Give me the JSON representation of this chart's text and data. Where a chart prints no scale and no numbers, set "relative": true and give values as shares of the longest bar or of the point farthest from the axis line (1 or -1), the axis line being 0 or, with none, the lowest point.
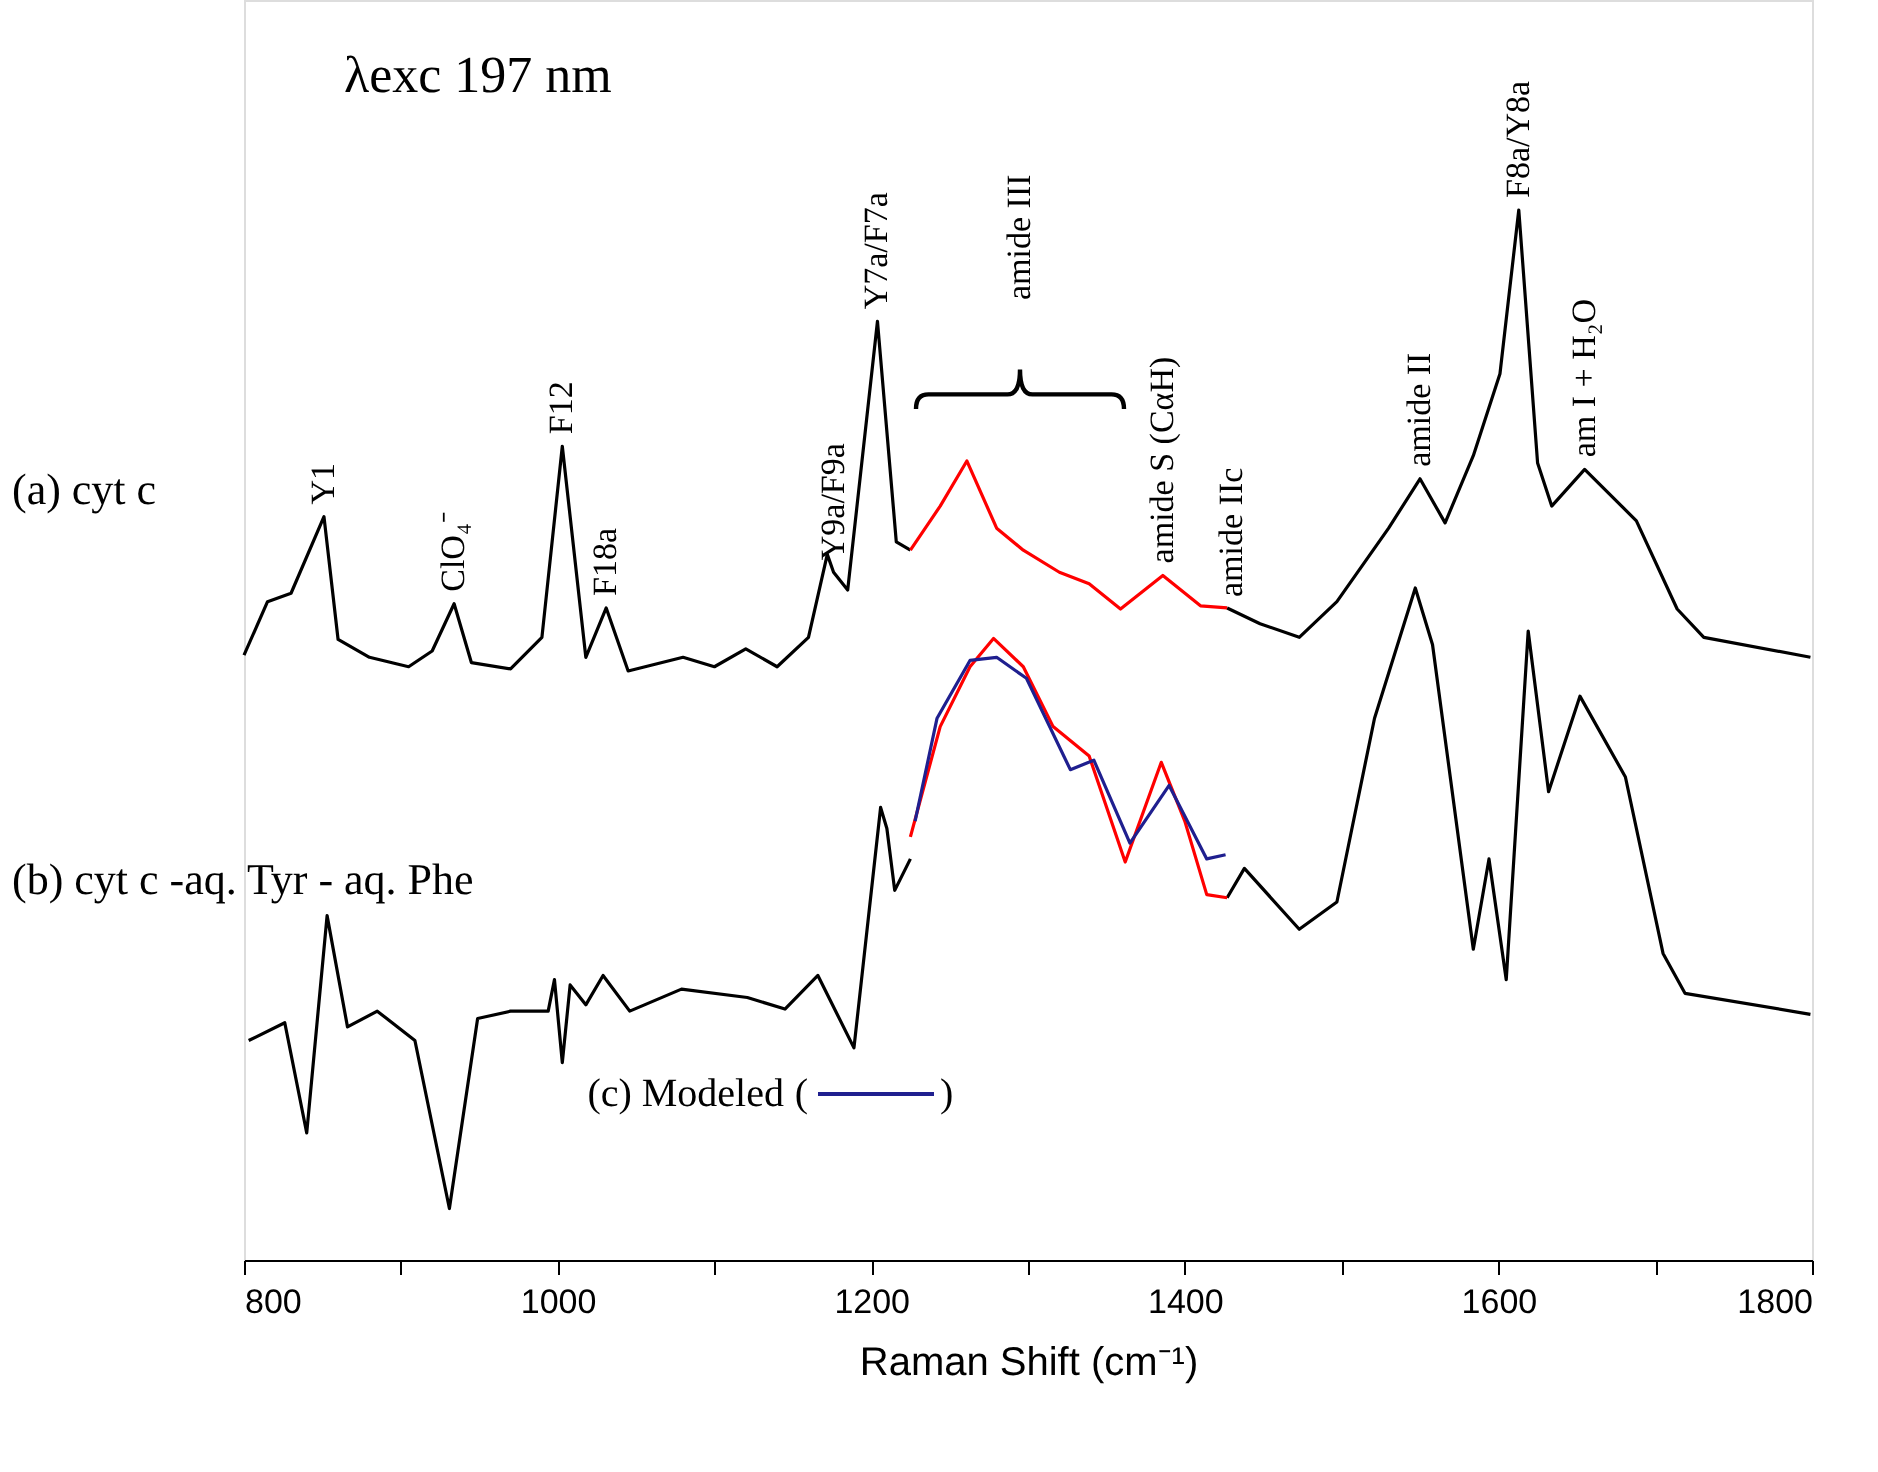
{
  "chart_data": {
    "type": "line",
    "relative": true,
    "xlabel": "Raman Shift (cm⁻¹)",
    "xlim": [
      800,
      1800
    ],
    "xticks": [
      800,
      {
        "value": 900,
        "label": null
      },
      1000,
      {
        "value": 1100,
        "label": null
      },
      1200,
      {
        "value": 1300,
        "label": null
      },
      1400,
      {
        "value": 1500,
        "label": null
      },
      1600,
      {
        "value": 1700,
        "label": null
      },
      1800
    ],
    "grid": false,
    "legend": "bottom",
    "line_style": "solid",
    "marker": "none",
    "series": [
      {
        "color": "#000000",
        "x": [
          800,
          815,
          830,
          851,
          860,
          880,
          905,
          920,
          934,
          945,
          970,
          990,
          1003,
          1018,
          1031,
          1045,
          1080,
          1100,
          1120,
          1140,
          1160,
          1172,
          1176,
          1185,
          1204,
          1216,
          1225,
          1326,
          1427,
          1448,
          1473,
          1497,
          1530,
          1550,
          1566,
          1584,
          1601,
          1613,
          1625,
          1634,
          1655,
          1688,
          1714,
          1731,
          1799
        ],
        "values": [
          0.576,
          0.627,
          0.635,
          0.708,
          0.591,
          0.574,
          0.565,
          0.58,
          0.625,
          0.569,
          0.563,
          0.593,
          0.775,
          0.574,
          0.621,
          0.561,
          0.574,
          0.565,
          0.582,
          0.565,
          0.593,
          0.672,
          0.655,
          0.638,
          0.894,
          0.684,
          0.676,
          null,
          0.621,
          0.606,
          0.593,
          0.627,
          0.697,
          0.744,
          0.702,
          0.766,
          0.844,
          1.0,
          0.759,
          0.718,
          0.753,
          0.704,
          0.62,
          0.593,
          0.574
        ]
      },
      {
        "color": "#ff0000",
        "x": [
          1225,
          1244,
          1261,
          1280,
          1297,
          1320,
          1339,
          1359,
          1386,
          1410,
          1427
        ],
        "values": [
          0.676,
          0.718,
          0.761,
          0.697,
          0.676,
          0.655,
          0.644,
          0.62,
          0.652,
          0.623,
          0.621
        ]
      },
      {
        "color": "#000000",
        "x": [
          803,
          826,
          840,
          853,
          866,
          885,
          909,
          931,
          949,
          970,
          994,
          998,
          1003,
          1008,
          1018,
          1029,
          1046,
          1079,
          1121,
          1145,
          1166,
          1189,
          1206,
          1210,
          1215,
          1225,
          1326,
          1427,
          1438,
          1473,
          1497,
          1521,
          1547,
          1558,
          1584,
          1594,
          1605,
          1619,
          1632,
          1652,
          1681,
          1705,
          1719,
          1799
        ],
        "values": [
          0.209,
          0.226,
          0.121,
          0.328,
          0.222,
          0.237,
          0.209,
          0.049,
          0.23,
          0.237,
          0.237,
          0.267,
          0.188,
          0.262,
          0.243,
          0.271,
          0.237,
          0.258,
          0.25,
          0.239,
          0.271,
          0.202,
          0.431,
          0.411,
          0.352,
          0.382,
          null,
          0.345,
          0.373,
          0.315,
          0.341,
          0.516,
          0.64,
          0.586,
          0.296,
          0.382,
          0.267,
          0.599,
          0.446,
          0.537,
          0.46,
          0.292,
          0.254,
          0.234
        ]
      },
      {
        "color": "#ff0000",
        "x": [
          1225,
          1244,
          1263,
          1278,
          1297,
          1316,
          1339,
          1362,
          1385,
          1400,
          1414,
          1427
        ],
        "values": [
          0.403,
          0.508,
          0.565,
          0.592,
          0.565,
          0.508,
          0.48,
          0.379,
          0.474,
          0.418,
          0.348,
          0.345
        ]
      },
      {
        "name": "(c) Modeled",
        "color": "#1f1f8f",
        "x": [
          1228,
          1242,
          1263,
          1280,
          1299,
          1327,
          1342,
          1365,
          1390,
          1414,
          1426
        ],
        "values": [
          0.418,
          0.516,
          0.571,
          0.574,
          0.554,
          0.467,
          0.476,
          0.397,
          0.452,
          0.382,
          0.386
        ]
      }
    ],
    "annotations": [
      "λexc 197 nm",
      "(a) cyt c",
      "(b) cyt c -aq. Tyr - aq. Phe",
      "amide III",
      "(",
      ")",
      {
        "text": "Y1",
        "x": 851,
        "y": 0.708
      },
      {
        "text": "ClO₄⁻",
        "x": 934,
        "y": 0.625
      },
      {
        "text": "F12",
        "x": 1003,
        "y": 0.775
      },
      {
        "text": "F18a",
        "x": 1031,
        "y": 0.621
      },
      {
        "text": "Y9a/F9a",
        "x": 1176,
        "y": 0.655
      },
      {
        "text": "Y7a/F7a",
        "x": 1204,
        "y": 0.894
      },
      {
        "text": "amide S (CαH)",
        "x": 1386,
        "y": 0.652
      },
      {
        "text": "amide IIc",
        "x": 1430,
        "y": 0.62
      },
      {
        "text": "amide II",
        "x": 1550,
        "y": 0.744
      },
      {
        "text": "F8a/Y8a",
        "x": 1613,
        "y": 1.0
      },
      {
        "text": "am I + H₂O",
        "x": 1655,
        "y": 0.753
      }
    ]
  }
}
